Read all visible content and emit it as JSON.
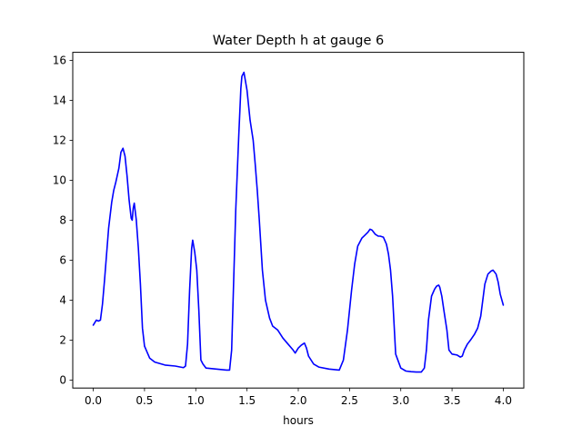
{
  "chart_data": {
    "type": "line",
    "title": "Water Depth h at gauge 6",
    "xlabel": "hours",
    "ylabel": "",
    "xlim": [
      -0.2,
      4.2
    ],
    "ylim": [
      -0.4,
      16.4
    ],
    "xticks": [
      0.0,
      0.5,
      1.0,
      1.5,
      2.0,
      2.5,
      3.0,
      3.5,
      4.0
    ],
    "xtick_labels": [
      "0.0",
      "0.5",
      "1.0",
      "1.5",
      "2.0",
      "2.5",
      "3.0",
      "3.5",
      "4.0"
    ],
    "yticks": [
      0,
      2,
      4,
      6,
      8,
      10,
      12,
      14,
      16
    ],
    "ytick_labels": [
      "0",
      "2",
      "4",
      "6",
      "8",
      "10",
      "12",
      "14",
      "16"
    ],
    "grid": false,
    "series": [
      {
        "color": "#0000ff",
        "x": [
          0.0,
          0.03,
          0.05,
          0.07,
          0.09,
          0.11,
          0.13,
          0.15,
          0.18,
          0.2,
          0.22,
          0.25,
          0.27,
          0.29,
          0.31,
          0.33,
          0.35,
          0.37,
          0.38,
          0.39,
          0.4,
          0.42,
          0.44,
          0.46,
          0.48,
          0.5,
          0.55,
          0.6,
          0.7,
          0.8,
          0.88,
          0.9,
          0.92,
          0.94,
          0.96,
          0.97,
          0.99,
          1.01,
          1.03,
          1.05,
          1.07,
          1.1,
          1.2,
          1.3,
          1.33,
          1.35,
          1.37,
          1.39,
          1.42,
          1.44,
          1.45,
          1.47,
          1.5,
          1.53,
          1.56,
          1.58,
          1.6,
          1.62,
          1.65,
          1.68,
          1.72,
          1.75,
          1.8,
          1.85,
          1.9,
          1.95,
          1.97,
          2.0,
          2.03,
          2.06,
          2.08,
          2.1,
          2.15,
          2.2,
          2.3,
          2.4,
          2.44,
          2.48,
          2.52,
          2.55,
          2.58,
          2.62,
          2.65,
          2.68,
          2.7,
          2.72,
          2.75,
          2.78,
          2.8,
          2.83,
          2.86,
          2.88,
          2.9,
          2.92,
          2.95,
          3.0,
          3.05,
          3.1,
          3.15,
          3.2,
          3.23,
          3.25,
          3.27,
          3.3,
          3.33,
          3.35,
          3.37,
          3.38,
          3.4,
          3.42,
          3.45,
          3.47,
          3.5,
          3.55,
          3.58,
          3.6,
          3.62,
          3.65,
          3.68,
          3.72,
          3.75,
          3.78,
          3.8,
          3.82,
          3.85,
          3.88,
          3.9,
          3.93,
          3.95,
          3.97,
          4.0
        ],
        "y": [
          2.75,
          3.0,
          2.95,
          3.0,
          3.8,
          5.0,
          6.3,
          7.6,
          8.9,
          9.5,
          9.9,
          10.6,
          11.4,
          11.6,
          11.2,
          10.2,
          9.0,
          8.1,
          8.0,
          8.6,
          8.85,
          8.0,
          6.6,
          4.8,
          2.6,
          1.7,
          1.1,
          0.9,
          0.75,
          0.7,
          0.62,
          0.7,
          1.8,
          4.5,
          6.6,
          7.0,
          6.4,
          5.5,
          3.5,
          1.0,
          0.8,
          0.6,
          0.55,
          0.5,
          0.5,
          1.5,
          5.0,
          8.5,
          12.3,
          14.6,
          15.2,
          15.4,
          14.5,
          13.0,
          12.0,
          10.8,
          9.5,
          8.0,
          5.5,
          4.0,
          3.1,
          2.7,
          2.5,
          2.1,
          1.8,
          1.5,
          1.35,
          1.6,
          1.75,
          1.85,
          1.6,
          1.2,
          0.8,
          0.65,
          0.55,
          0.5,
          1.0,
          2.5,
          4.5,
          5.8,
          6.7,
          7.1,
          7.25,
          7.4,
          7.55,
          7.5,
          7.3,
          7.2,
          7.2,
          7.15,
          6.8,
          6.3,
          5.5,
          4.2,
          1.3,
          0.6,
          0.45,
          0.42,
          0.4,
          0.4,
          0.6,
          1.5,
          3.0,
          4.2,
          4.55,
          4.7,
          4.75,
          4.65,
          4.2,
          3.5,
          2.5,
          1.5,
          1.3,
          1.25,
          1.15,
          1.2,
          1.5,
          1.8,
          2.0,
          2.3,
          2.6,
          3.2,
          4.0,
          4.8,
          5.3,
          5.45,
          5.5,
          5.3,
          4.9,
          4.3,
          3.75
        ]
      }
    ]
  }
}
